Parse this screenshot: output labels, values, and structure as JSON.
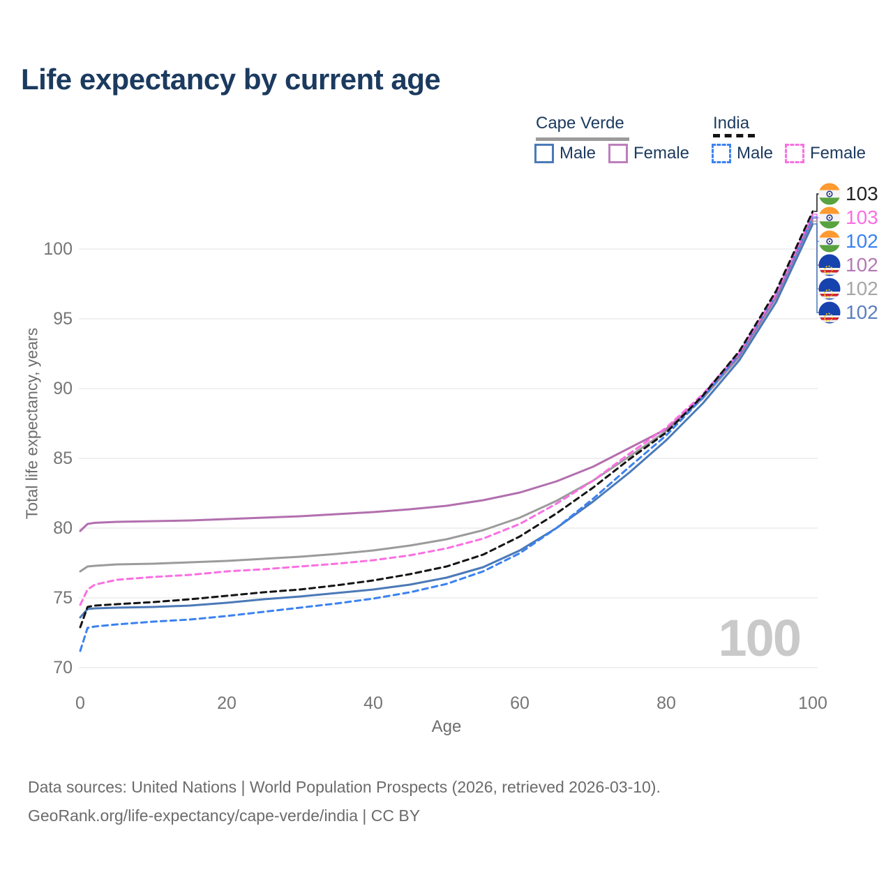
{
  "title": "Life expectancy by current age",
  "legend": {
    "cape_verde": {
      "label": "Cape Verde",
      "male": "Male",
      "female": "Female"
    },
    "india": {
      "label": "India",
      "male": "Male",
      "female": "Female"
    }
  },
  "current_age_indicator": "100",
  "footer": {
    "line1": "Data sources: United Nations | World Population Prospects (2026, retrieved 2026-03-10).",
    "line2": "GeoRank.org/life-expectancy/cape-verde/india | CC BY"
  },
  "chart_data": {
    "type": "line",
    "title": "Life expectancy by current age",
    "xlabel": "Age",
    "ylabel": "Total life expectancy, years",
    "xlim": [
      0,
      100
    ],
    "ylim": [
      69.5,
      103.5
    ],
    "x_ticks": [
      0,
      20,
      40,
      60,
      80,
      100
    ],
    "y_ticks": [
      70,
      75,
      80,
      85,
      90,
      95,
      100
    ],
    "grid": "horizontal-only",
    "legend_position": "top-right",
    "colors": {
      "cape_verde_male": "#4b79b7",
      "cape_verde_female": "#b26fae",
      "cape_verde_both": "#9b9b9b",
      "india_male": "#3b82f0",
      "india_female": "#fa6fe2",
      "india_both": "#141414",
      "grid": "#ececec",
      "axis_text": "#757575"
    },
    "ages": [
      0,
      1,
      2,
      5,
      10,
      15,
      20,
      25,
      30,
      35,
      40,
      45,
      50,
      55,
      60,
      65,
      70,
      75,
      80,
      85,
      90,
      95,
      100
    ],
    "series": [
      {
        "id": "cape-verde-both",
        "name": "Cape Verde (both sexes)",
        "color": "#9b9b9b",
        "dash": "solid",
        "values": [
          76.9,
          77.25,
          77.3,
          77.4,
          77.45,
          77.55,
          77.65,
          77.8,
          77.95,
          78.15,
          78.4,
          78.75,
          79.2,
          79.85,
          80.75,
          81.95,
          83.4,
          85.15,
          86.95,
          89.3,
          92.3,
          96.5,
          102.0
        ]
      },
      {
        "id": "cape-verde-male",
        "name": "Cape Verde Male",
        "color": "#4b79b7",
        "dash": "solid",
        "values": [
          73.6,
          74.2,
          74.25,
          74.3,
          74.35,
          74.45,
          74.65,
          74.9,
          75.1,
          75.35,
          75.6,
          75.95,
          76.45,
          77.2,
          78.4,
          80.0,
          81.9,
          84.0,
          86.3,
          88.95,
          92.05,
          96.2,
          101.8
        ]
      },
      {
        "id": "cape-verde-female",
        "name": "Cape Verde Female",
        "color": "#b26fae",
        "dash": "solid",
        "values": [
          79.8,
          80.3,
          80.38,
          80.45,
          80.5,
          80.55,
          80.65,
          80.75,
          80.85,
          81.0,
          81.15,
          81.35,
          81.6,
          82.0,
          82.55,
          83.35,
          84.4,
          85.75,
          87.1,
          89.4,
          92.4,
          96.6,
          102.2
        ]
      },
      {
        "id": "india-male",
        "name": "India Male",
        "color": "#3b82f0",
        "dash": "dashed",
        "values": [
          71.2,
          72.85,
          72.95,
          73.1,
          73.3,
          73.45,
          73.7,
          74.0,
          74.3,
          74.6,
          74.95,
          75.4,
          76.0,
          76.9,
          78.2,
          80.0,
          82.1,
          84.4,
          86.65,
          89.35,
          92.5,
          96.75,
          102.3
        ]
      },
      {
        "id": "india-female",
        "name": "India Female",
        "color": "#fa6fe2",
        "dash": "dashed",
        "values": [
          74.5,
          75.6,
          75.95,
          76.3,
          76.5,
          76.65,
          76.9,
          77.05,
          77.25,
          77.45,
          77.7,
          78.05,
          78.55,
          79.25,
          80.3,
          81.75,
          83.4,
          85.35,
          87.2,
          89.6,
          92.6,
          96.8,
          102.5
        ]
      },
      {
        "id": "india-both",
        "name": "India (both sexes)",
        "color": "#141414",
        "dash": "dashed",
        "values": [
          72.9,
          74.35,
          74.45,
          74.55,
          74.7,
          74.9,
          75.15,
          75.4,
          75.6,
          75.9,
          76.25,
          76.7,
          77.25,
          78.1,
          79.4,
          81.05,
          82.9,
          84.95,
          86.85,
          89.5,
          92.7,
          97.0,
          102.7
        ]
      }
    ],
    "callouts": [
      {
        "series": "india-both",
        "flag": "india",
        "label": "103",
        "color": "#222222"
      },
      {
        "series": "india-female",
        "flag": "india",
        "label": "103",
        "color": "#fa6fe2"
      },
      {
        "series": "india-male",
        "flag": "india",
        "label": "102",
        "color": "#3b82f0"
      },
      {
        "series": "cape-verde-female",
        "flag": "cape-verde",
        "label": "102",
        "color": "#b47ab4"
      },
      {
        "series": "cape-verde-both",
        "flag": "cape-verde",
        "label": "102",
        "color": "#a6a6a6"
      },
      {
        "series": "cape-verde-male",
        "flag": "cape-verde",
        "label": "102",
        "color": "#5b7fbe"
      }
    ]
  }
}
